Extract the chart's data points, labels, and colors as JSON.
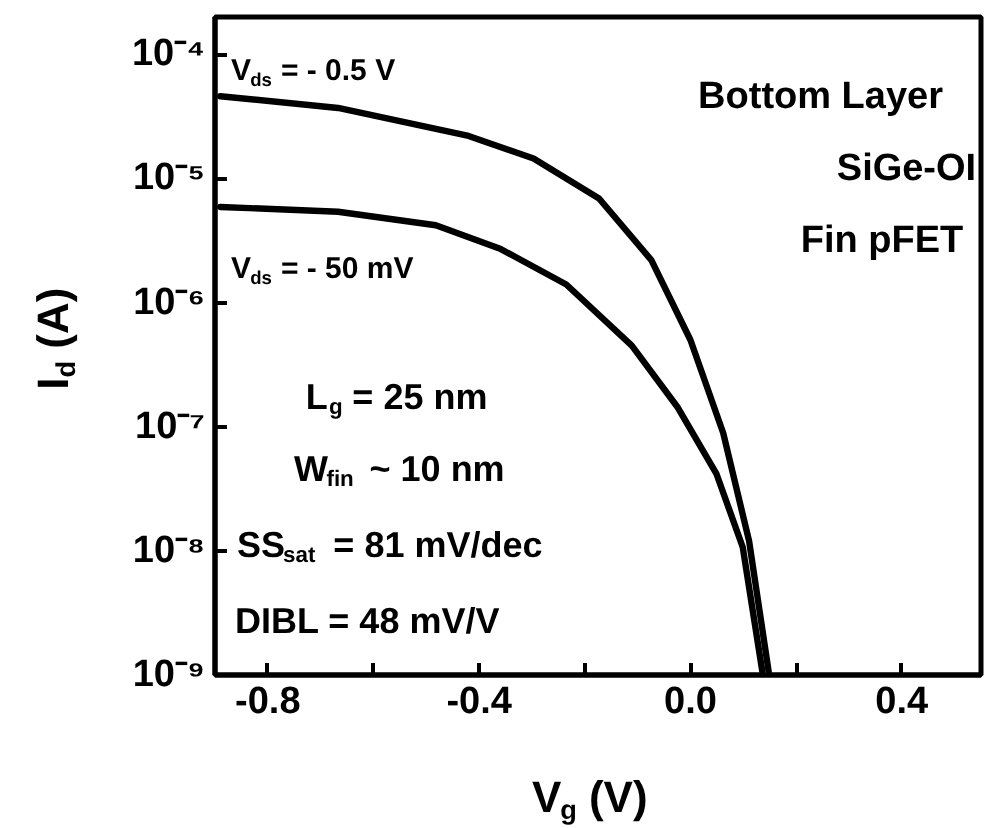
{
  "chart_data": {
    "type": "line",
    "xlabel": "V$_{g}$ (V)",
    "ylabel": "I$_{d}$ (A)",
    "log": "y",
    "xlim": [
      -0.9,
      0.55
    ],
    "ylim": [
      1e-09,
      0.0002
    ],
    "xticks": [
      {
        "value": -0.8,
        "label": "-0.8"
      },
      {
        "value": -0.6,
        "label": null
      },
      {
        "value": -0.4,
        "label": "-0.4"
      },
      {
        "value": -0.2,
        "label": null
      },
      {
        "value": 0.0,
        "label": "0.0"
      },
      {
        "value": 0.2,
        "label": null
      },
      {
        "value": 0.4,
        "label": "0.4"
      }
    ],
    "yticks": [
      {
        "value": 1e-09,
        "label": "10⁻⁹"
      },
      {
        "value": 1e-08,
        "label": "10⁻⁸"
      },
      {
        "value": 1e-07,
        "label": "10⁻⁷"
      },
      {
        "value": 1e-06,
        "label": "10⁻⁶"
      },
      {
        "value": 1e-05,
        "label": "10⁻⁵"
      },
      {
        "value": 0.0001,
        "label": "10⁻⁴"
      }
    ],
    "series": [
      {
        "color": "#000000",
        "x": [
          -0.89,
          -0.667,
          -0.42,
          -0.297,
          -0.173,
          -0.074,
          0.0,
          0.062,
          0.111,
          0.148
        ],
        "values": [
          4.6e-05,
          3.7e-05,
          2.2e-05,
          1.45e-05,
          6.9e-06,
          2.2e-06,
          5e-07,
          8.9e-08,
          1.2e-08,
          1.07e-09
        ]
      },
      {
        "color": "#000000",
        "x": [
          -0.89,
          -0.667,
          -0.482,
          -0.359,
          -0.235,
          -0.111,
          -0.025,
          0.049,
          0.099,
          0.136
        ],
        "values": [
          5.9e-06,
          5.4e-06,
          4.2e-06,
          2.7e-06,
          1.4e-06,
          4.5e-07,
          1.45e-07,
          4.2e-08,
          1.07e-08,
          1.07e-09
        ]
      }
    ],
    "line_style": "solid",
    "marker": "none",
    "grid": false,
    "annotations": [
      "V$_{ds}$ = - 0.5 V",
      "V$_{ds}$ = - 50 mV",
      "Bottom Layer",
      "SiGe-OI",
      "Fin pFET",
      "L$_{g}$ = 25 nm",
      "W$_{fin}$ ~ 10 nm",
      "SS$_{sat}$ = 81 mV/dec",
      "DIBL = 48 mV/V"
    ]
  }
}
